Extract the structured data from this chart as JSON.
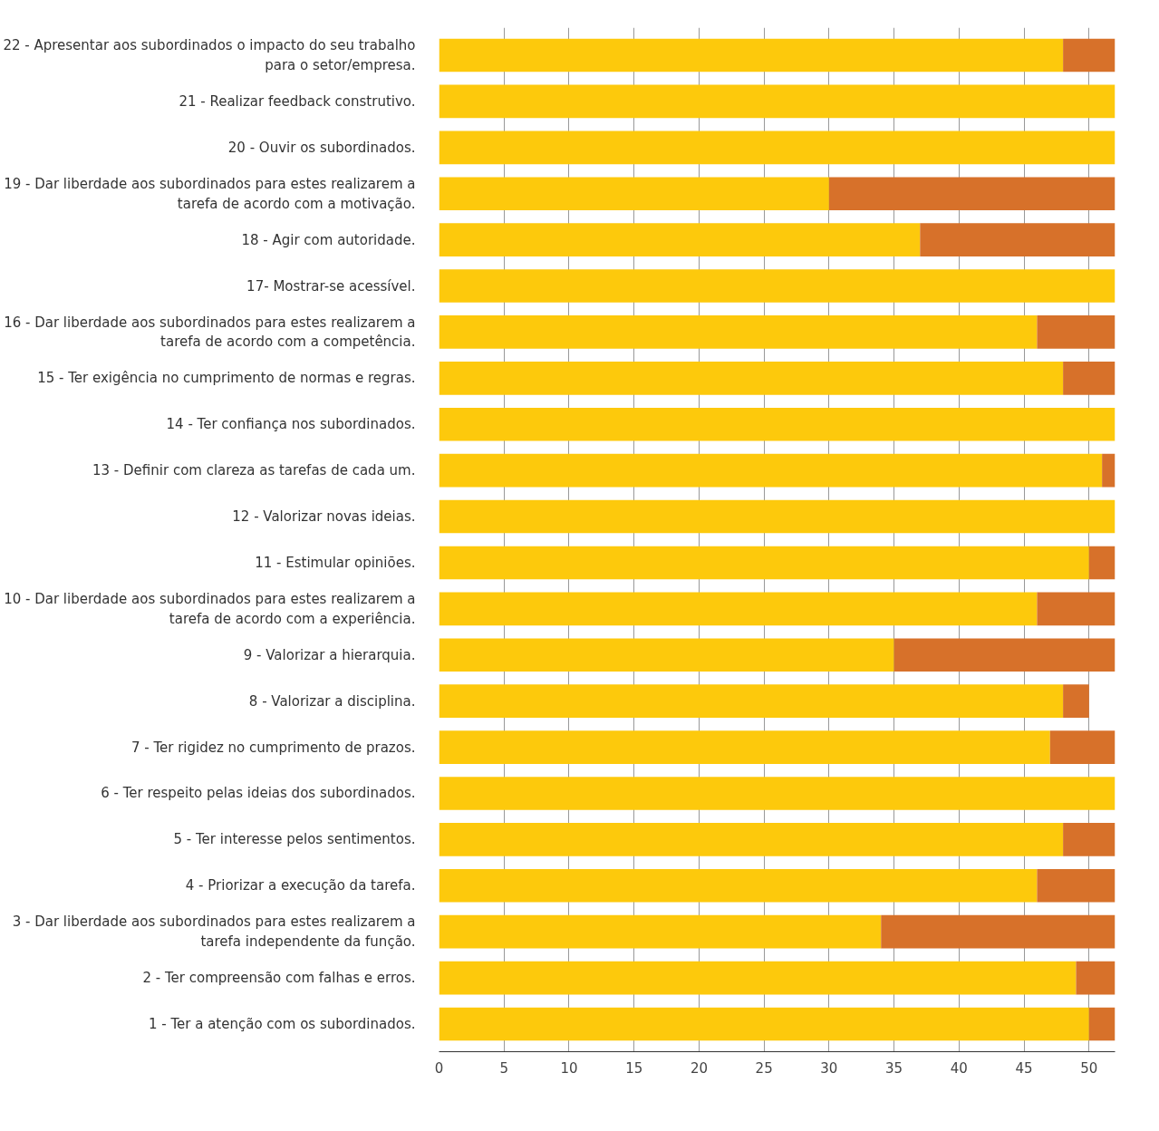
{
  "chart_data": {
    "type": "bar",
    "orientation": "horizontal",
    "stacked": true,
    "grid": "x",
    "categories": [
      "22 - Apresentar aos subordinados o impacto do seu trabalho para o setor/empresa.",
      "21 - Realizar feedback construtivo.",
      "20 - Ouvir os subordinados.",
      "19 - Dar liberdade aos subordinados para estes realizarem a tarefa de acordo com a motivação.",
      "18 - Agir com autoridade.",
      "17- Mostrar-se acessível.",
      "16 - Dar liberdade aos subordinados para estes realizarem a tarefa de acordo com a competência.",
      "15 - Ter exigência no cumprimento de normas e regras.",
      "14 - Ter confiança nos subordinados.",
      "13 - Definir com clareza as tarefas de cada um.",
      "12 - Valorizar novas ideias.",
      "11 - Estimular opiniões.",
      "10 - Dar liberdade aos subordinados para estes realizarem a tarefa de acordo com a experiência.",
      "9 - Valorizar a hierarquia.",
      "8 - Valorizar a disciplina.",
      "7 - Ter rigidez no cumprimento de prazos.",
      "6 - Ter respeito pelas ideias dos subordinados.",
      "5 - Ter interesse pelos sentimentos.",
      "4 - Priorizar a execução da tarefa.",
      "3 - Dar liberdade aos subordinados para estes realizarem a tarefa independente da função.",
      "2 - Ter compreensão com falhas e erros.",
      "1 - Ter a atenção com os subordinados."
    ],
    "series": [
      {
        "color": "#fdc90c",
        "values": [
          48,
          52,
          52,
          30,
          37,
          52,
          46,
          48,
          52,
          51,
          52,
          50,
          46,
          35,
          48,
          47,
          52,
          48,
          46,
          34,
          49,
          50
        ]
      },
      {
        "color": "#d7712a",
        "values": [
          4,
          0,
          0,
          22,
          15,
          0,
          6,
          4,
          0,
          1,
          0,
          2,
          6,
          17,
          2,
          5,
          0,
          4,
          6,
          18,
          3,
          2
        ]
      }
    ],
    "xlim": [
      0,
      52
    ],
    "xticks": [
      0,
      5,
      10,
      15,
      20,
      25,
      30,
      35,
      40,
      45,
      50
    ]
  }
}
